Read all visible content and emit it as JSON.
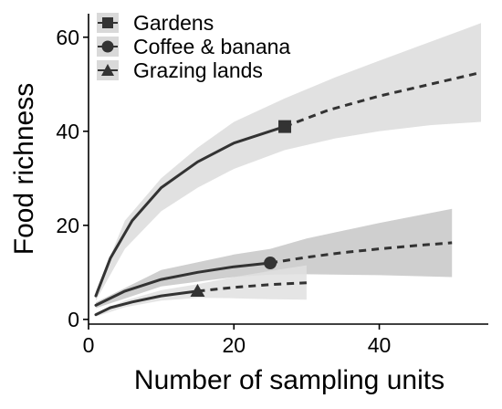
{
  "chart_data": {
    "type": "line",
    "title": "",
    "xlabel": "Number of sampling units",
    "ylabel": "Food richness",
    "xlim": [
      0,
      55
    ],
    "ylim": [
      -1,
      65
    ],
    "x_ticks": [
      "0",
      "20",
      "40"
    ],
    "y_ticks": [
      "0",
      "20",
      "40",
      "60"
    ],
    "grid": false,
    "legend_position": "top-left",
    "series": [
      {
        "name": "Gardens",
        "marker": "square",
        "observed": {
          "x": 27,
          "y": 41
        },
        "interpolated": [
          [
            1,
            5
          ],
          [
            3,
            13
          ],
          [
            6,
            21
          ],
          [
            10,
            28
          ],
          [
            15,
            33.5
          ],
          [
            20,
            37.5
          ],
          [
            27,
            41
          ]
        ],
        "extrapolated": [
          [
            27,
            41
          ],
          [
            33,
            44.5
          ],
          [
            40,
            47.5
          ],
          [
            47,
            50
          ],
          [
            54,
            52.5
          ]
        ],
        "ci_lower": [
          [
            1,
            4
          ],
          [
            5,
            15
          ],
          [
            10,
            23
          ],
          [
            15,
            28
          ],
          [
            20,
            32
          ],
          [
            27,
            36
          ],
          [
            34,
            38.5
          ],
          [
            40,
            40
          ],
          [
            47,
            41.3
          ],
          [
            54,
            42
          ]
        ],
        "ci_upper": [
          [
            1,
            6
          ],
          [
            5,
            21
          ],
          [
            10,
            30
          ],
          [
            15,
            36.5
          ],
          [
            20,
            42
          ],
          [
            27,
            47
          ],
          [
            34,
            51.5
          ],
          [
            40,
            55
          ],
          [
            47,
            59
          ],
          [
            54,
            63
          ]
        ]
      },
      {
        "name": "Coffee & banana",
        "marker": "circle",
        "observed": {
          "x": 25,
          "y": 12
        },
        "interpolated": [
          [
            1,
            3
          ],
          [
            5,
            6
          ],
          [
            10,
            8.5
          ],
          [
            15,
            10
          ],
          [
            20,
            11.2
          ],
          [
            25,
            12
          ]
        ],
        "extrapolated": [
          [
            25,
            12
          ],
          [
            30,
            13.2
          ],
          [
            35,
            14.2
          ],
          [
            40,
            15
          ],
          [
            45,
            15.7
          ],
          [
            50,
            16.3
          ]
        ],
        "ci_lower": [
          [
            1,
            2.4
          ],
          [
            10,
            7
          ],
          [
            20,
            9
          ],
          [
            25,
            9.5
          ],
          [
            30,
            9.6
          ],
          [
            40,
            9.4
          ],
          [
            50,
            9
          ]
        ],
        "ci_upper": [
          [
            1,
            3.6
          ],
          [
            10,
            10.5
          ],
          [
            20,
            13.8
          ],
          [
            25,
            15
          ],
          [
            30,
            17.2
          ],
          [
            40,
            20.5
          ],
          [
            50,
            23.5
          ]
        ]
      },
      {
        "name": "Grazing lands",
        "marker": "triangle",
        "observed": {
          "x": 15,
          "y": 6
        },
        "interpolated": [
          [
            1,
            1
          ],
          [
            3,
            2.5
          ],
          [
            6,
            3.7
          ],
          [
            10,
            5
          ],
          [
            15,
            6
          ]
        ],
        "extrapolated": [
          [
            15,
            6
          ],
          [
            20,
            6.8
          ],
          [
            25,
            7.4
          ],
          [
            30,
            7.8
          ]
        ],
        "ci_lower": [
          [
            1,
            0.6
          ],
          [
            5,
            2.6
          ],
          [
            10,
            4
          ],
          [
            15,
            4.6
          ],
          [
            20,
            4.5
          ],
          [
            25,
            4.3
          ],
          [
            30,
            4.2
          ]
        ],
        "ci_upper": [
          [
            1,
            1.4
          ],
          [
            5,
            4
          ],
          [
            10,
            6.2
          ],
          [
            15,
            7.5
          ],
          [
            20,
            9
          ],
          [
            25,
            10.3
          ],
          [
            30,
            11.5
          ]
        ]
      }
    ]
  },
  "colors": {
    "line": "#333333",
    "axis": "#000000",
    "ci_gardens": "#dcdcdc",
    "ci_coffee": "#c7c7c7",
    "ci_grazing": "#e0e0e0",
    "legend_key_bg": "#d9d9d9"
  }
}
